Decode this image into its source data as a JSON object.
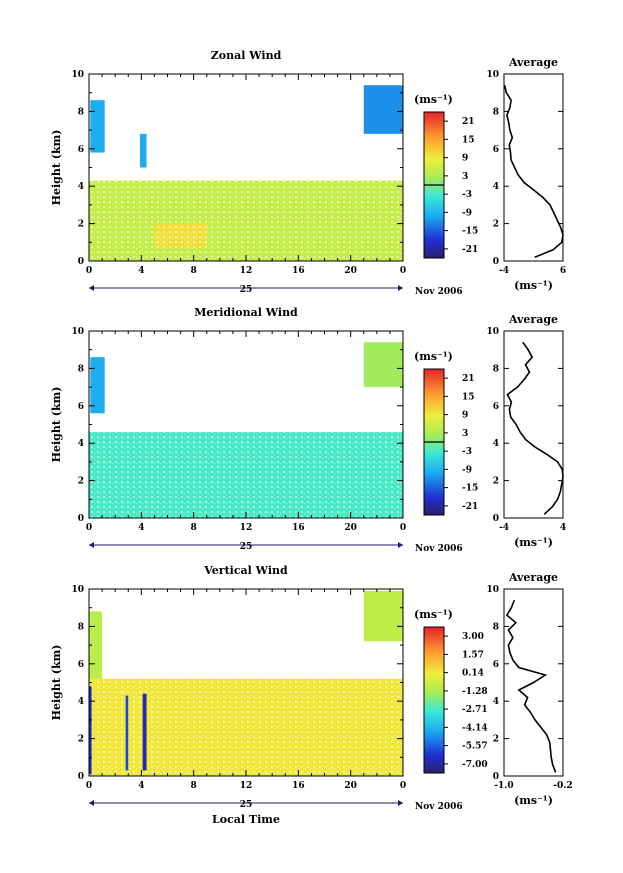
{
  "figure": {
    "xlabel": "Local Time",
    "date_label": "25",
    "month_label": "Nov 2006",
    "ylabel": "Height (km)",
    "unit": "(ms⁻¹)"
  },
  "chart_data": [
    {
      "type": "heatmap",
      "title": "Zonal Wind",
      "xlabel": "Local Time",
      "ylabel": "Height (km)",
      "xticks": [
        "0",
        "4",
        "8",
        "12",
        "16",
        "20",
        "0"
      ],
      "yticks": [
        "0",
        "2",
        "4",
        "6",
        "8",
        "10"
      ],
      "xlim": [
        0,
        24
      ],
      "ylim": [
        0,
        10
      ],
      "colorbar": {
        "label": "(ms⁻¹)",
        "ticks": [
          "21",
          "15",
          "9",
          "3",
          "-3",
          "-9",
          "-15",
          "-21"
        ],
        "range": [
          -24,
          24
        ],
        "zero_line": 0
      },
      "regions": [
        {
          "x": [
            0.1,
            1.2
          ],
          "y": [
            5.8,
            8.6
          ],
          "value": -10
        },
        {
          "x": [
            3.9,
            4.4
          ],
          "y": [
            5.0,
            6.8
          ],
          "value": -10
        },
        {
          "x": [
            21.0,
            24.0
          ],
          "y": [
            6.8,
            9.4
          ],
          "value": -12
        },
        {
          "x": [
            0.0,
            24.0
          ],
          "y": [
            0.0,
            4.3
          ],
          "value": 5
        },
        {
          "x": [
            5.0,
            9.0
          ],
          "y": [
            0.7,
            2.0
          ],
          "value": 10
        }
      ],
      "average_profile": {
        "title": "Average",
        "xlabel": "(ms⁻¹)",
        "xticks": [
          "-4",
          "6"
        ],
        "yticks": [
          "0",
          "2",
          "4",
          "6",
          "8",
          "10"
        ],
        "xlim": [
          -4,
          6
        ],
        "heights": [
          0.2,
          0.6,
          1.0,
          1.4,
          1.8,
          2.2,
          2.6,
          3.0,
          3.4,
          3.8,
          4.2,
          4.6,
          5.0,
          5.4,
          5.8,
          6.2,
          6.6,
          7.0,
          7.4,
          7.8,
          8.2,
          8.6,
          9.0,
          9.4
        ],
        "values": [
          1.2,
          4.3,
          5.8,
          6.0,
          5.6,
          5.0,
          4.4,
          3.8,
          2.6,
          1.0,
          -0.6,
          -1.6,
          -2.2,
          -2.8,
          -2.9,
          -3.1,
          -2.6,
          -3.0,
          -3.2,
          -3.5,
          -3.0,
          -2.8,
          -3.6,
          -3.9
        ]
      }
    },
    {
      "type": "heatmap",
      "title": "Meridional Wind",
      "xlabel": "Local Time",
      "ylabel": "Height (km)",
      "xticks": [
        "0",
        "4",
        "8",
        "12",
        "16",
        "20",
        "0"
      ],
      "yticks": [
        "0",
        "2",
        "4",
        "6",
        "8",
        "10"
      ],
      "xlim": [
        0,
        24
      ],
      "ylim": [
        0,
        10
      ],
      "colorbar": {
        "label": "(ms⁻¹)",
        "ticks": [
          "21",
          "15",
          "9",
          "3",
          "-3",
          "-9",
          "-15",
          "-21"
        ],
        "range": [
          -24,
          24
        ],
        "zero_line": 0
      },
      "regions": [
        {
          "x": [
            0.1,
            1.2
          ],
          "y": [
            5.6,
            8.6
          ],
          "value": -10
        },
        {
          "x": [
            0.0,
            24.0
          ],
          "y": [
            0.0,
            4.6
          ],
          "value": -3
        },
        {
          "x": [
            21.0,
            24.0
          ],
          "y": [
            7.0,
            9.4
          ],
          "value": 2
        }
      ],
      "average_profile": {
        "title": "Average",
        "xlabel": "(ms⁻¹)",
        "xticks": [
          "-4",
          "4"
        ],
        "yticks": [
          "0",
          "2",
          "4",
          "6",
          "8",
          "10"
        ],
        "xlim": [
          -4.4,
          4.4
        ],
        "heights": [
          0.2,
          0.6,
          1.0,
          1.4,
          1.8,
          2.2,
          2.6,
          3.0,
          3.4,
          3.8,
          4.2,
          4.6,
          5.0,
          5.4,
          5.8,
          6.2,
          6.6,
          7.0,
          7.4,
          7.8,
          8.2,
          8.6,
          9.0,
          9.4
        ],
        "values": [
          1.6,
          2.8,
          3.6,
          4.0,
          4.2,
          4.4,
          4.3,
          3.6,
          2.0,
          0.2,
          -1.2,
          -2.0,
          -2.6,
          -3.4,
          -3.6,
          -3.3,
          -3.9,
          -2.4,
          -1.4,
          -0.6,
          -1.2,
          -0.2,
          -0.8,
          -1.6
        ]
      }
    },
    {
      "type": "heatmap",
      "title": "Vertical Wind",
      "xlabel": "Local Time",
      "ylabel": "Height (km)",
      "xticks": [
        "0",
        "4",
        "8",
        "12",
        "16",
        "20",
        "0"
      ],
      "yticks": [
        "0",
        "2",
        "4",
        "6",
        "8",
        "10"
      ],
      "xlim": [
        0,
        24
      ],
      "ylim": [
        0,
        10
      ],
      "colorbar": {
        "label": "(ms⁻¹)",
        "ticks": [
          "3.00",
          "1.57",
          "0.14",
          "-1.28",
          "-2.71",
          "-4.14",
          "-5.57",
          "-7.00"
        ],
        "range": [
          -7.7,
          3.7
        ]
      },
      "regions": [
        {
          "x": [
            0.0,
            1.0
          ],
          "y": [
            0.0,
            8.8
          ],
          "value": -1.0
        },
        {
          "x": [
            21.0,
            24.0
          ],
          "y": [
            7.2,
            9.9
          ],
          "value": -0.9
        },
        {
          "x": [
            0.0,
            24.0
          ],
          "y": [
            0.0,
            5.2
          ],
          "value": 0.2
        },
        {
          "x": [
            0.0,
            0.2
          ],
          "y": [
            0.1,
            4.8
          ],
          "value": -6.5
        },
        {
          "x": [
            2.8,
            3.0
          ],
          "y": [
            0.3,
            4.3
          ],
          "value": -6.0
        },
        {
          "x": [
            4.1,
            4.4
          ],
          "y": [
            0.3,
            4.4
          ],
          "value": -6.8
        }
      ],
      "average_profile": {
        "title": "Average",
        "xlabel": "(ms⁻¹)",
        "xticks": [
          "-1.0",
          "-0.2"
        ],
        "yticks": [
          "0",
          "2",
          "4",
          "6",
          "8",
          "10"
        ],
        "xlim": [
          -1.0,
          -0.2
        ],
        "heights": [
          0.2,
          0.6,
          1.0,
          1.4,
          1.8,
          2.2,
          2.6,
          3.0,
          3.4,
          3.8,
          4.2,
          4.6,
          5.0,
          5.4,
          5.8,
          6.2,
          6.6,
          7.0,
          7.4,
          7.8,
          8.2,
          8.6,
          9.0,
          9.4
        ],
        "values": [
          -0.3,
          -0.34,
          -0.36,
          -0.37,
          -0.38,
          -0.42,
          -0.5,
          -0.58,
          -0.64,
          -0.72,
          -0.68,
          -0.8,
          -0.6,
          -0.44,
          -0.8,
          -0.88,
          -0.92,
          -0.94,
          -0.88,
          -0.94,
          -0.84,
          -0.96,
          -0.9,
          -0.86
        ]
      }
    }
  ]
}
